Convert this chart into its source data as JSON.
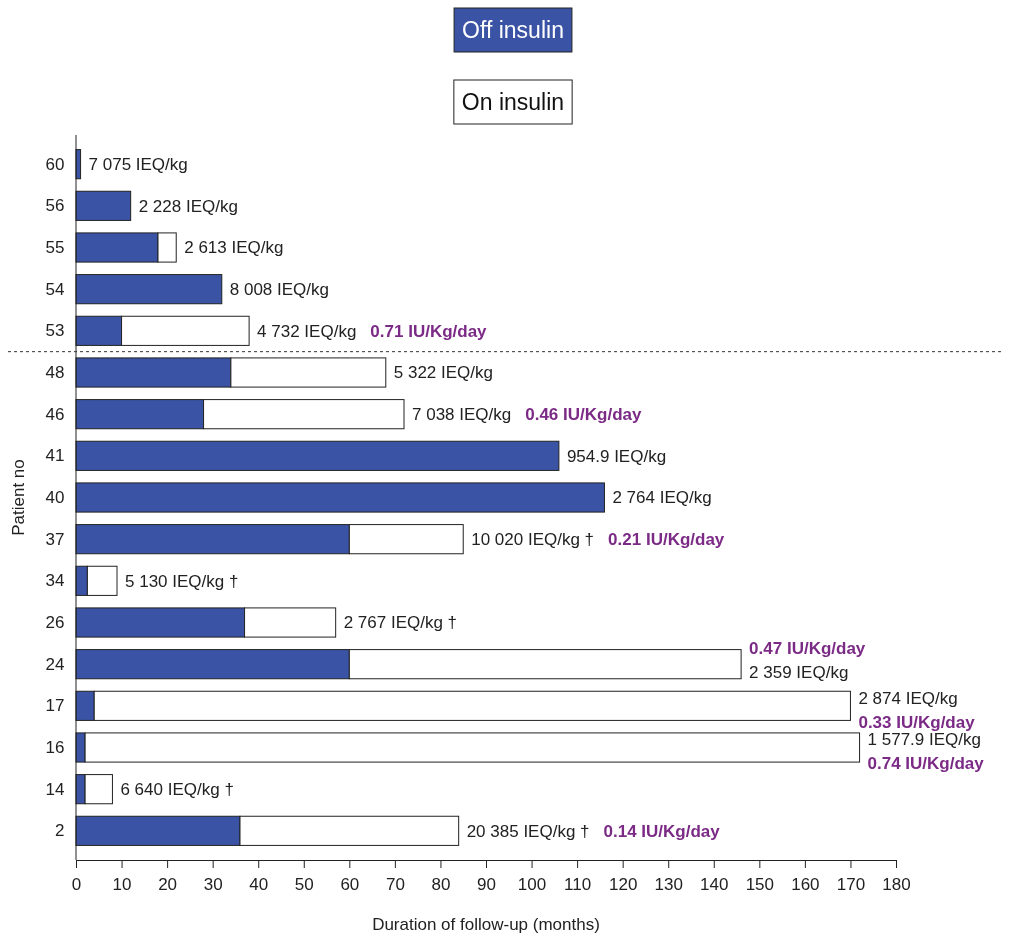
{
  "chart_data": {
    "type": "bar",
    "orientation": "horizontal",
    "stacked": true,
    "categories": [
      "60",
      "56",
      "55",
      "54",
      "53",
      "48",
      "46",
      "41",
      "40",
      "37",
      "34",
      "26",
      "24",
      "17",
      "16",
      "14",
      "2"
    ],
    "series": [
      {
        "name": "Off insulin",
        "color": "#3a53a4",
        "values": [
          1,
          12,
          18,
          32,
          10,
          34,
          28,
          106,
          116,
          60,
          2.5,
          37,
          60,
          4,
          2,
          2,
          36
        ]
      },
      {
        "name": "On insulin",
        "color": "#ffffff",
        "values": [
          0,
          0,
          4,
          0,
          28,
          34,
          44,
          0,
          0,
          25,
          6.5,
          20,
          86,
          166,
          170,
          6,
          48
        ]
      }
    ],
    "xlim": [
      0,
      180
    ],
    "xticks": [
      0,
      10,
      20,
      30,
      40,
      50,
      60,
      70,
      80,
      90,
      100,
      110,
      120,
      130,
      140,
      150,
      160,
      170,
      180
    ],
    "xlabel": "Duration of follow-up (months)",
    "ylabel": "Patient no",
    "legend": "top",
    "ref_lines": [
      {
        "axis": "y",
        "value": "53",
        "line_style": "dotted",
        "color": "#333333"
      }
    ],
    "annotations": [
      {
        "text": "7 075 IEQ/kg",
        "x": 1,
        "y": "60"
      },
      {
        "text": "2 228 IEQ/kg",
        "x": 12,
        "y": "56"
      },
      {
        "text": "2 613 IEQ/kg",
        "x": 22,
        "y": "55"
      },
      {
        "text": "8 008 IEQ/kg",
        "x": 32,
        "y": "54"
      },
      {
        "text": "4 732 IEQ/kg  0.71 IU/Kg/day",
        "x": 38,
        "y": "53"
      },
      {
        "text": "5 322 IEQ/kg",
        "x": 68,
        "y": "48"
      },
      {
        "text": "7 038 IEQ/kg  0.46 IU/Kg/day",
        "x": 72,
        "y": "46"
      },
      {
        "text": "954.9 IEQ/kg",
        "x": 106,
        "y": "41"
      },
      {
        "text": "2 764 IEQ/kg",
        "x": 116,
        "y": "40"
      },
      {
        "text": "10 020 IEQ/kg †  0.21 IU/Kg/day",
        "x": 85,
        "y": "37"
      },
      {
        "text": "5 130 IEQ/kg †",
        "x": 9,
        "y": "34"
      },
      {
        "text": "2 767 IEQ/kg †",
        "x": 57,
        "y": "26"
      },
      {
        "text": "2 359 IEQ/kg",
        "x": 146,
        "y": "24"
      },
      {
        "text": "2 874 IEQ/kg",
        "x": 170,
        "y": "17"
      },
      {
        "text": "1 577.9 IEQ/kg",
        "x": 172,
        "y": "16"
      },
      {
        "text": "6 640 IEQ/kg †",
        "x": 8,
        "y": "14"
      },
      {
        "text": "20 385 IEQ/kg †  0.14 IU/Kg/day",
        "x": 84,
        "y": "2"
      },
      {
        "text": "0.47 IU/Kg/day",
        "x": 146,
        "y": "24"
      },
      {
        "text": "0.33 IU/Kg/day",
        "x": 170,
        "y": "17"
      },
      {
        "text": "0.74 IU/Kg/day",
        "x": 172,
        "y": "16"
      }
    ]
  }
}
